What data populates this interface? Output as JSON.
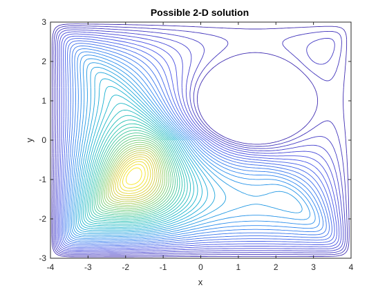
{
  "chart_data": {
    "type": "contour",
    "title": "Possible 2-D solution",
    "xlabel": "x",
    "ylabel": "y",
    "xlim": [
      -4,
      4
    ],
    "ylim": [
      -3,
      3
    ],
    "xticks": [
      -4,
      -3,
      -2,
      -1,
      0,
      1,
      2,
      3,
      4
    ],
    "yticks": [
      -3,
      -2,
      -1,
      0,
      1,
      2,
      3
    ],
    "xtick_labels": [
      "-4",
      "-3",
      "-2",
      "-1",
      "0",
      "1",
      "2",
      "3",
      "4"
    ],
    "ytick_labels": [
      "-3",
      "-2",
      "-1",
      "0",
      "1",
      "2",
      "3"
    ],
    "grid": false,
    "colormap": "parula",
    "hole": {
      "center": [
        1.45,
        1.0
      ],
      "radius_x": 1.45,
      "radius_y": 1.05
    },
    "colors": {
      "low": "#3e26a8",
      "mid1": "#1f97d0",
      "mid2": "#28c3aa",
      "high": "#f5e41b",
      "frame": "#262626"
    }
  }
}
